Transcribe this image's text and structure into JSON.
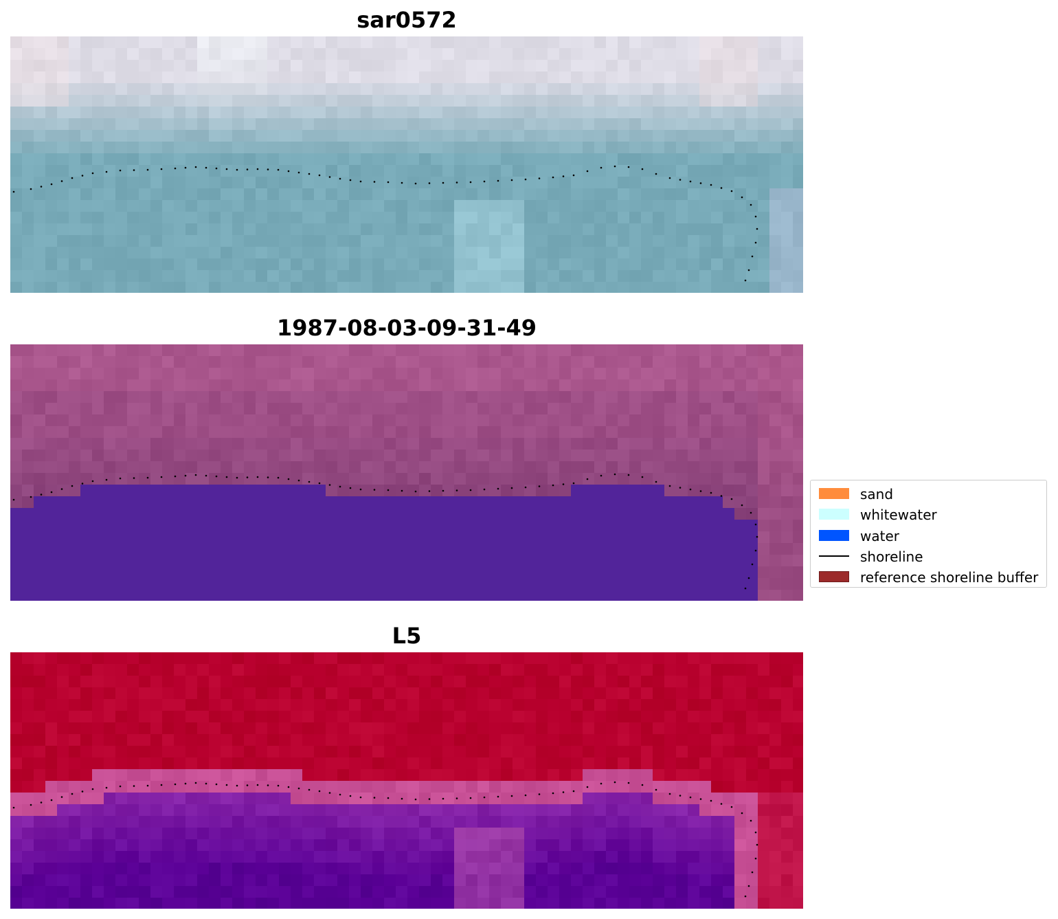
{
  "panels": [
    {
      "title": "sar0572",
      "kind": "sar"
    },
    {
      "title": "1987-08-03-09-31-49",
      "kind": "classified"
    },
    {
      "title": "L5",
      "kind": "index"
    }
  ],
  "legend": {
    "items": [
      {
        "label": "sand",
        "color": "#ff8c3c",
        "kind": "patch"
      },
      {
        "label": "whitewater",
        "color": "#ccffff",
        "kind": "patch"
      },
      {
        "label": "water",
        "color": "#0055ff",
        "kind": "patch"
      },
      {
        "label": "shoreline",
        "color": "#000000",
        "kind": "line"
      },
      {
        "label": "reference shoreline buffer",
        "color": "#9c2a2a",
        "kind": "patch"
      }
    ]
  },
  "colors": {
    "water_overlay": "#52249a",
    "index_high": "#b8002e",
    "index_low": "#5a0096",
    "sar_sky": "#dcdde6",
    "sar_water": "#7aacb8",
    "classified_land": "#9e4f86"
  }
}
